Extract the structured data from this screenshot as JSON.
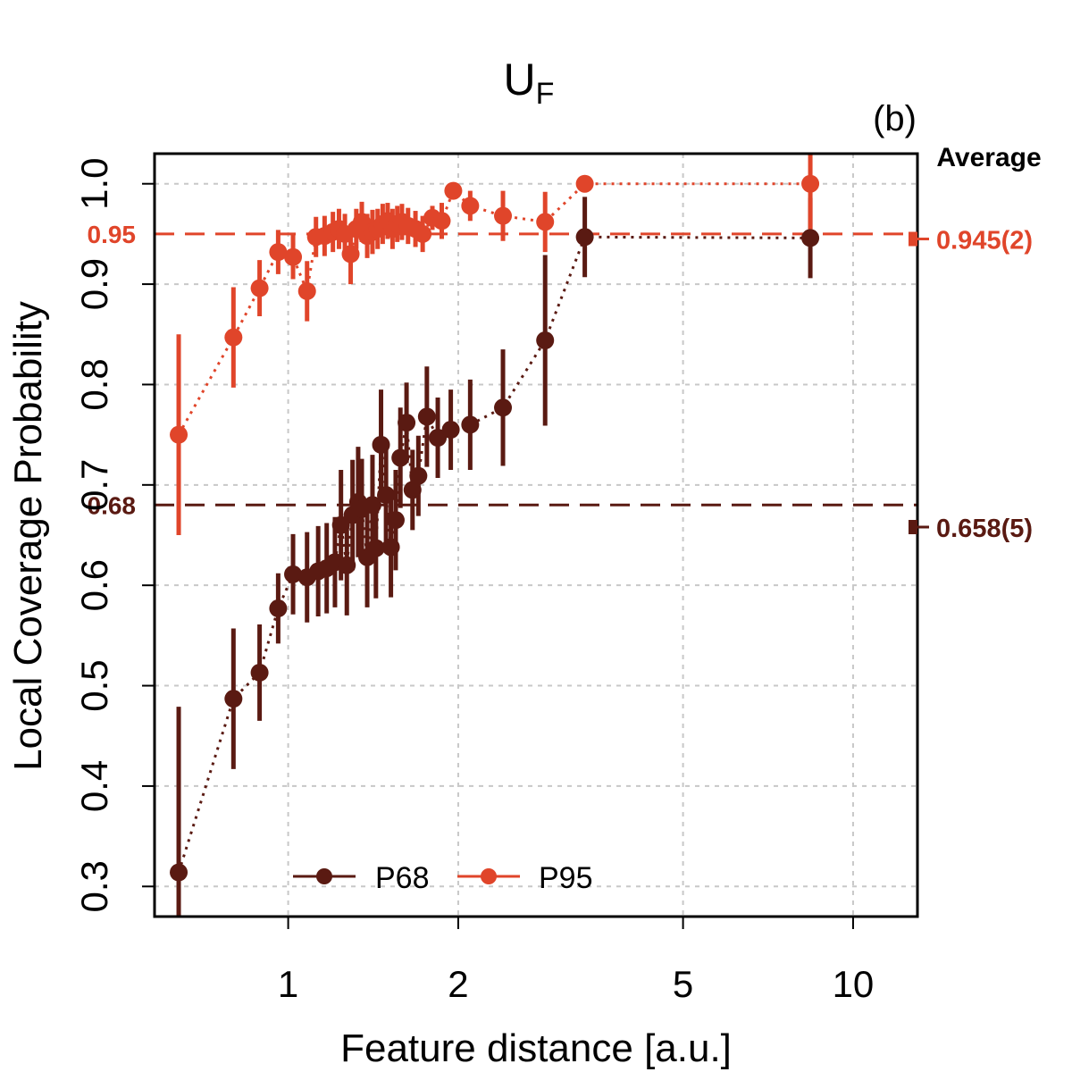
{
  "chart_data": {
    "type": "scatter",
    "title_main": "U",
    "title_sub": "F",
    "panel_label": "(b)",
    "xlabel": "Feature distance [a.u.]",
    "ylabel": "Local Coverage Probability",
    "x_scale": "log",
    "xlim": [
      0.58,
      13.0
    ],
    "ylim": [
      0.27,
      1.03
    ],
    "x_ticks": [
      1,
      2,
      5,
      10
    ],
    "x_tick_labels": [
      "1",
      "2",
      "5",
      "10"
    ],
    "y_ticks": [
      0.3,
      0.4,
      0.5,
      0.6,
      0.7,
      0.8,
      0.9,
      1.0
    ],
    "y_tick_labels": [
      "0.3",
      "0.4",
      "0.5",
      "0.6",
      "0.7",
      "0.8",
      "0.9",
      "1.0"
    ],
    "grid": true,
    "legend_position": "bottom-center",
    "average_header": "Average",
    "colors": {
      "p68": "#5a1a12",
      "p95": "#e0452a",
      "grid": "#c8c8c8",
      "axis": "#000000"
    },
    "reference_lines": [
      {
        "name": "P68-target",
        "y": 0.68,
        "label": "0.68",
        "color": "#5a1a12"
      },
      {
        "name": "P95-target",
        "y": 0.95,
        "label": "0.95",
        "color": "#e0452a"
      }
    ],
    "averages": [
      {
        "name": "P68-average",
        "y": 0.658,
        "label": "0.658(5)",
        "color": "#5a1a12"
      },
      {
        "name": "P95-average",
        "y": 0.945,
        "label": "0.945(2)",
        "color": "#e0452a"
      }
    ],
    "series": [
      {
        "name": "P68",
        "color": "#5a1a12",
        "x": [
          0.64,
          0.8,
          0.89,
          0.96,
          1.02,
          1.08,
          1.13,
          1.17,
          1.21,
          1.24,
          1.27,
          1.3,
          1.33,
          1.35,
          1.38,
          1.41,
          1.43,
          1.46,
          1.49,
          1.52,
          1.55,
          1.58,
          1.62,
          1.66,
          1.7,
          1.76,
          1.84,
          1.94,
          2.1,
          2.4,
          2.85,
          3.35,
          8.4
        ],
        "y": [
          0.314,
          0.487,
          0.513,
          0.577,
          0.611,
          0.608,
          0.614,
          0.617,
          0.623,
          0.66,
          0.62,
          0.67,
          0.683,
          0.676,
          0.628,
          0.68,
          0.637,
          0.74,
          0.69,
          0.638,
          0.665,
          0.727,
          0.762,
          0.695,
          0.709,
          0.768,
          0.747,
          0.755,
          0.76,
          0.777,
          0.844,
          0.947,
          0.946
        ],
        "yerr": [
          0.165,
          0.07,
          0.048,
          0.035,
          0.04,
          0.045,
          0.045,
          0.045,
          0.045,
          0.055,
          0.05,
          0.055,
          0.055,
          0.05,
          0.05,
          0.05,
          0.05,
          0.055,
          0.055,
          0.05,
          0.05,
          0.05,
          0.04,
          0.04,
          0.04,
          0.05,
          0.04,
          0.04,
          0.045,
          0.058,
          0.085,
          0.04,
          0.04
        ]
      },
      {
        "name": "P95",
        "color": "#e0452a",
        "x": [
          0.64,
          0.8,
          0.89,
          0.96,
          1.02,
          1.08,
          1.12,
          1.16,
          1.2,
          1.23,
          1.26,
          1.29,
          1.32,
          1.35,
          1.38,
          1.41,
          1.44,
          1.47,
          1.5,
          1.53,
          1.56,
          1.59,
          1.63,
          1.68,
          1.73,
          1.8,
          1.87,
          1.96,
          2.1,
          2.4,
          2.85,
          3.35,
          8.4
        ],
        "y": [
          0.75,
          0.847,
          0.896,
          0.932,
          0.927,
          0.893,
          0.947,
          0.948,
          0.952,
          0.955,
          0.95,
          0.93,
          0.955,
          0.962,
          0.948,
          0.952,
          0.955,
          0.96,
          0.963,
          0.955,
          0.96,
          0.962,
          0.958,
          0.955,
          0.95,
          0.966,
          0.963,
          0.993,
          0.978,
          0.968,
          0.962,
          1.0,
          1.0
        ],
        "yerr": [
          0.1,
          0.05,
          0.028,
          0.022,
          0.022,
          0.03,
          0.02,
          0.02,
          0.02,
          0.02,
          0.02,
          0.03,
          0.02,
          0.02,
          0.022,
          0.022,
          0.02,
          0.02,
          0.018,
          0.02,
          0.018,
          0.018,
          0.018,
          0.018,
          0.018,
          0.012,
          0.018,
          0.008,
          0.015,
          0.025,
          0.03,
          0.0,
          0.058
        ]
      }
    ]
  }
}
